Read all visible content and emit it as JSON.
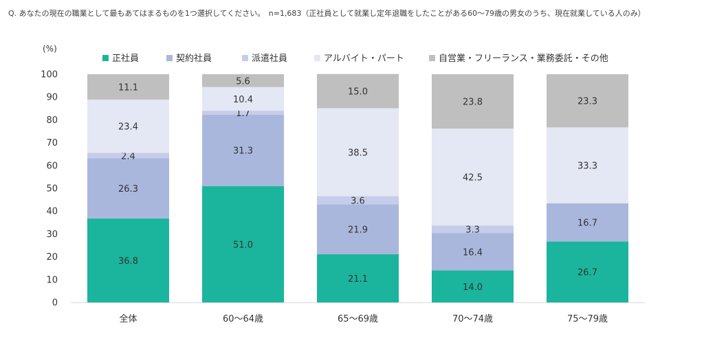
{
  "question": "Q.  あなたの現在の職業として最もあてはまるものを1つ選択してください。　n=1,683（正社員として就業し定年退職をしたことがある60～79歳の男女のうち、現在就業している人のみ）",
  "chart_data": {
    "type": "bar",
    "stacked": true,
    "unit": "(%)",
    "ylim": [
      0,
      100
    ],
    "yticks": [
      0,
      10,
      20,
      30,
      40,
      50,
      60,
      70,
      80,
      90,
      100
    ],
    "categories": [
      "全体",
      "60～64歳",
      "65～69歳",
      "70～74歳",
      "75～79歳"
    ],
    "legend_position": "top",
    "series": [
      {
        "name": "正社員",
        "color": "#1bb59e",
        "values": [
          36.8,
          51.0,
          21.1,
          14.0,
          26.7
        ]
      },
      {
        "name": "契約社員",
        "color": "#aab7dd",
        "values": [
          26.3,
          31.3,
          21.9,
          16.4,
          16.7
        ]
      },
      {
        "name": "派遣社員",
        "color": "#c5cde8",
        "values": [
          2.4,
          1.7,
          3.6,
          3.3,
          null
        ]
      },
      {
        "name": "アルバイト・パート",
        "color": "#e4e7f4",
        "values": [
          23.4,
          10.4,
          38.5,
          42.5,
          33.3
        ]
      },
      {
        "name": "自営業・フリーランス・業務委託・その他",
        "color": "#bfbfbf",
        "values": [
          11.1,
          5.6,
          15.0,
          23.8,
          23.3
        ]
      }
    ]
  }
}
